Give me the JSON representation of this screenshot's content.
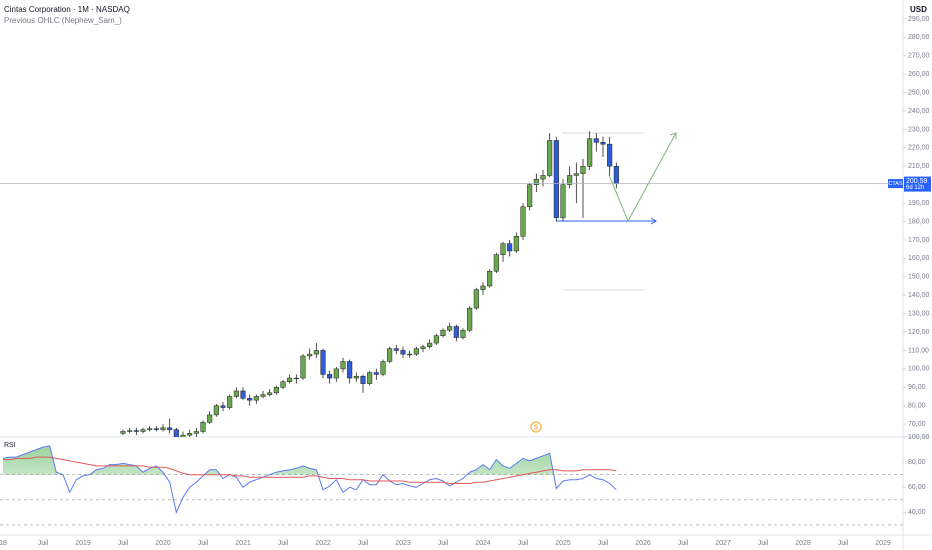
{
  "header": {
    "title": "Cintas Corporation · 1M · NASDAQ",
    "indicator": "Previous OHLC (Nephew_Sam_)",
    "currency": "USD"
  },
  "chart_data": [
    {
      "type": "candlestick",
      "symbol": "CTAS",
      "xlim": [
        "2018-01",
        "2029-04"
      ],
      "xticks": [
        {
          "value": "2018-01",
          "label": "18"
        },
        {
          "value": "2018-07",
          "label": "Juil"
        },
        {
          "value": "2019-01",
          "label": "2019"
        },
        {
          "value": "2019-07",
          "label": "Juil"
        },
        {
          "value": "2020-01",
          "label": "2020"
        },
        {
          "value": "2020-07",
          "label": "Juil"
        },
        {
          "value": "2021-01",
          "label": "2021"
        },
        {
          "value": "2021-07",
          "label": "Juil"
        },
        {
          "value": "2022-01",
          "label": "2022"
        },
        {
          "value": "2022-07",
          "label": "Juil"
        },
        {
          "value": "2023-01",
          "label": "2023"
        },
        {
          "value": "2023-07",
          "label": "Juil"
        },
        {
          "value": "2024-01",
          "label": "2024"
        },
        {
          "value": "2024-07",
          "label": "Juil"
        },
        {
          "value": "2025-01",
          "label": "2025"
        },
        {
          "value": "2025-07",
          "label": "Juil"
        },
        {
          "value": "2026-01",
          "label": "2026"
        },
        {
          "value": "2026-07",
          "label": "Juil"
        },
        {
          "value": "2027-01",
          "label": "2027"
        },
        {
          "value": "2027-07",
          "label": "Juil"
        },
        {
          "value": "2028-01",
          "label": "2028"
        },
        {
          "value": "2028-07",
          "label": "Juil"
        },
        {
          "value": "2029-01",
          "label": "2029"
        }
      ],
      "dates": [
        "2019-07",
        "2019-08",
        "2019-09",
        "2019-10",
        "2019-11",
        "2019-12",
        "2020-01",
        "2020-02",
        "2020-03",
        "2020-04",
        "2020-05",
        "2020-06",
        "2020-07",
        "2020-08",
        "2020-09",
        "2020-10",
        "2020-11",
        "2020-12",
        "2021-01",
        "2021-02",
        "2021-03",
        "2021-04",
        "2021-05",
        "2021-06",
        "2021-07",
        "2021-08",
        "2021-09",
        "2021-10",
        "2021-11",
        "2021-12",
        "2022-01",
        "2022-02",
        "2022-03",
        "2022-04",
        "2022-05",
        "2022-06",
        "2022-07",
        "2022-08",
        "2022-09",
        "2022-10",
        "2022-11",
        "2022-12",
        "2023-01",
        "2023-02",
        "2023-03",
        "2023-04",
        "2023-05",
        "2023-06",
        "2023-07",
        "2023-08",
        "2023-09",
        "2023-10",
        "2023-11",
        "2023-12",
        "2024-01",
        "2024-02",
        "2024-03",
        "2024-04",
        "2024-05",
        "2024-06",
        "2024-07",
        "2024-08",
        "2024-09",
        "2024-10",
        "2024-11",
        "2024-12",
        "2025-01",
        "2025-02",
        "2025-03",
        "2025-04",
        "2025-05",
        "2025-06",
        "2025-07",
        "2025-08",
        "2025-09"
      ],
      "ohlc": [
        [
          65,
          67,
          64,
          66
        ],
        [
          66,
          68,
          65,
          66.5
        ],
        [
          66.5,
          68,
          64,
          66
        ],
        [
          66,
          68,
          65,
          67
        ],
        [
          67,
          69,
          66,
          67.5
        ],
        [
          67.5,
          69,
          66,
          67
        ],
        [
          67,
          70,
          66,
          68
        ],
        [
          68,
          73,
          65,
          67
        ],
        [
          67,
          68,
          50,
          62
        ],
        [
          62,
          66,
          58,
          64
        ],
        [
          64,
          67,
          62,
          65
        ],
        [
          65,
          68,
          63,
          66
        ],
        [
          66,
          72,
          65,
          71
        ],
        [
          71,
          77,
          70,
          75
        ],
        [
          75,
          81,
          74,
          80
        ],
        [
          80,
          82,
          77,
          79
        ],
        [
          79,
          86,
          78,
          85
        ],
        [
          85,
          90,
          84,
          88
        ],
        [
          88,
          90,
          83,
          84
        ],
        [
          84,
          86,
          80,
          83
        ],
        [
          83,
          86,
          81,
          85
        ],
        [
          85,
          88,
          84,
          86
        ],
        [
          86,
          89,
          85,
          87
        ],
        [
          87,
          91,
          86,
          90
        ],
        [
          90,
          94,
          89,
          93
        ],
        [
          93,
          97,
          92,
          95
        ],
        [
          95,
          97,
          92,
          95
        ],
        [
          95,
          108,
          94,
          107
        ],
        [
          107,
          111,
          105,
          108
        ],
        [
          108,
          114,
          106,
          110
        ],
        [
          110,
          111,
          95,
          97
        ],
        [
          97,
          99,
          92,
          95
        ],
        [
          95,
          101,
          93,
          100
        ],
        [
          100,
          106,
          98,
          104
        ],
        [
          104,
          105,
          92,
          95
        ],
        [
          95,
          98,
          93,
          96
        ],
        [
          96,
          97,
          87,
          92
        ],
        [
          92,
          99,
          91,
          98
        ],
        [
          98,
          100,
          94,
          97
        ],
        [
          97,
          105,
          96,
          104
        ],
        [
          104,
          112,
          103,
          111
        ],
        [
          111,
          113,
          108,
          110
        ],
        [
          110,
          112,
          106,
          108
        ],
        [
          108,
          110,
          106,
          108
        ],
        [
          108,
          112,
          107,
          111
        ],
        [
          111,
          113,
          109,
          112
        ],
        [
          112,
          116,
          111,
          114
        ],
        [
          114,
          119,
          113,
          118
        ],
        [
          118,
          122,
          117,
          121
        ],
        [
          121,
          125,
          120,
          123
        ],
        [
          123,
          124,
          115,
          117
        ],
        [
          117,
          122,
          116,
          121
        ],
        [
          121,
          134,
          120,
          133
        ],
        [
          133,
          144,
          132,
          143
        ],
        [
          143,
          147,
          140,
          145
        ],
        [
          145,
          154,
          144,
          153
        ],
        [
          153,
          163,
          152,
          162
        ],
        [
          162,
          169,
          158,
          168
        ],
        [
          168,
          170,
          161,
          164
        ],
        [
          164,
          174,
          163,
          172
        ],
        [
          172,
          190,
          170,
          188
        ],
        [
          188,
          201,
          186,
          200
        ],
        [
          200,
          206,
          196,
          203
        ],
        [
          203,
          208,
          199,
          205
        ],
        [
          205,
          228,
          204,
          224
        ],
        [
          224,
          226,
          180,
          182
        ],
        [
          182,
          203,
          180,
          200
        ],
        [
          200,
          210,
          198,
          205
        ],
        [
          205,
          212,
          190,
          206
        ],
        [
          206,
          214,
          182,
          210
        ],
        [
          210,
          229,
          208,
          225
        ],
        [
          225,
          228,
          218,
          223
        ],
        [
          223,
          226,
          215,
          222
        ],
        [
          222,
          226,
          205,
          210
        ],
        [
          210,
          212,
          198,
          200.59
        ]
      ],
      "up_color": "#6aa84f",
      "down_color": "#2f5bd6",
      "ylim": [
        63,
        290.5
      ],
      "yticks": [
        {
          "value": 70,
          "label": "70,00"
        },
        {
          "value": 80,
          "label": "80,00"
        },
        {
          "value": 90,
          "label": "90,00"
        },
        {
          "value": 100,
          "label": "100,00"
        },
        {
          "value": 110,
          "label": "110,00"
        },
        {
          "value": 120,
          "label": "120,00"
        },
        {
          "value": 130,
          "label": "130,00"
        },
        {
          "value": 140,
          "label": "140,00"
        },
        {
          "value": 150,
          "label": "150,00"
        },
        {
          "value": 160,
          "label": "160,00"
        },
        {
          "value": 170,
          "label": "170,00"
        },
        {
          "value": 180,
          "label": "180,00"
        },
        {
          "value": 190,
          "label": "190,00"
        },
        {
          "value": 200,
          "label": "200,00"
        },
        {
          "value": 210,
          "label": "210,00"
        },
        {
          "value": 220,
          "label": "220,00"
        },
        {
          "value": 230,
          "label": "230,00"
        },
        {
          "value": 240,
          "label": "240,00"
        },
        {
          "value": 250,
          "label": "250,00"
        },
        {
          "value": 260,
          "label": "260,00"
        },
        {
          "value": 270,
          "label": "270,00"
        },
        {
          "value": 280,
          "label": "280,00"
        },
        {
          "value": 290,
          "label": "290,00"
        }
      ],
      "last_price": {
        "value": 200.59,
        "label": "200,59"
      },
      "countdown": "6d 12h",
      "dividend": "$"
    },
    {
      "type": "line",
      "title": "RSI",
      "dates": [
        "2018-01",
        "2018-02",
        "2018-03",
        "2018-04",
        "2018-05",
        "2018-06",
        "2018-07",
        "2018-08",
        "2018-09",
        "2018-10",
        "2018-11",
        "2018-12",
        "2019-01",
        "2019-02",
        "2019-03",
        "2019-04",
        "2019-05",
        "2019-06",
        "2019-07",
        "2019-08",
        "2019-09",
        "2019-10",
        "2019-11",
        "2019-12",
        "2020-01",
        "2020-02",
        "2020-03",
        "2020-04",
        "2020-05",
        "2020-06",
        "2020-07",
        "2020-08",
        "2020-09",
        "2020-10",
        "2020-11",
        "2020-12",
        "2021-01",
        "2021-02",
        "2021-03",
        "2021-04",
        "2021-05",
        "2021-06",
        "2021-07",
        "2021-08",
        "2021-09",
        "2021-10",
        "2021-11",
        "2021-12",
        "2022-01",
        "2022-02",
        "2022-03",
        "2022-04",
        "2022-05",
        "2022-06",
        "2022-07",
        "2022-08",
        "2022-09",
        "2022-10",
        "2022-11",
        "2022-12",
        "2023-01",
        "2023-02",
        "2023-03",
        "2023-04",
        "2023-05",
        "2023-06",
        "2023-07",
        "2023-08",
        "2023-09",
        "2023-10",
        "2023-11",
        "2023-12",
        "2024-01",
        "2024-02",
        "2024-03",
        "2024-04",
        "2024-05",
        "2024-06",
        "2024-07",
        "2024-08",
        "2024-09",
        "2024-10",
        "2024-11",
        "2024-12",
        "2025-01",
        "2025-02",
        "2025-03",
        "2025-04",
        "2025-05",
        "2025-06",
        "2025-07",
        "2025-08",
        "2025-09"
      ],
      "series": [
        {
          "color": "#5b7bf0",
          "values": [
            83,
            84,
            84,
            86,
            88,
            90,
            92,
            93,
            72,
            70,
            56,
            66,
            69,
            70,
            74,
            75,
            78,
            78,
            79,
            78,
            77,
            72,
            75,
            77,
            72,
            64,
            40,
            52,
            60,
            64,
            69,
            74,
            74,
            67,
            70,
            68,
            60,
            64,
            66,
            68,
            70,
            72,
            73,
            74,
            75,
            77,
            75,
            74,
            58,
            61,
            66,
            56,
            60,
            58,
            66,
            62,
            62,
            70,
            65,
            62,
            63,
            61,
            60,
            63,
            66,
            67,
            65,
            61,
            64,
            67,
            72,
            74,
            78,
            74,
            82,
            77,
            75,
            79,
            83,
            81,
            83,
            85,
            87,
            59,
            65,
            66,
            66,
            67,
            70,
            67,
            66,
            63,
            58
          ]
        },
        {
          "color": "#e05a5a",
          "values": [
            82,
            82,
            83,
            83,
            83,
            84,
            84,
            84,
            83,
            82,
            81,
            80,
            79,
            78,
            77,
            77,
            77,
            77,
            77,
            77,
            77,
            77,
            76,
            76,
            76,
            75,
            73,
            71,
            70,
            70,
            70,
            70,
            70,
            70,
            70,
            69,
            69,
            68,
            68,
            68,
            68,
            68,
            68,
            68,
            68,
            68,
            69,
            69,
            68,
            67,
            67,
            67,
            66,
            66,
            66,
            65,
            65,
            65,
            65,
            65,
            65,
            64,
            64,
            64,
            64,
            64,
            64,
            63,
            63,
            63,
            63,
            64,
            64,
            65,
            66,
            67,
            68,
            69,
            70,
            71,
            72,
            73,
            74,
            74,
            73,
            73,
            73,
            74,
            74,
            74,
            74,
            74,
            73
          ]
        }
      ],
      "overbought_fill": "#4caf50",
      "levels": [
        70,
        50,
        30
      ],
      "ylim": [
        22,
        100
      ],
      "yticks": [
        {
          "value": 40,
          "label": "40,00"
        },
        {
          "value": 60,
          "label": "60,00"
        },
        {
          "value": 80,
          "label": "80,00"
        },
        {
          "value": 100,
          "label": "100,00"
        }
      ]
    }
  ]
}
